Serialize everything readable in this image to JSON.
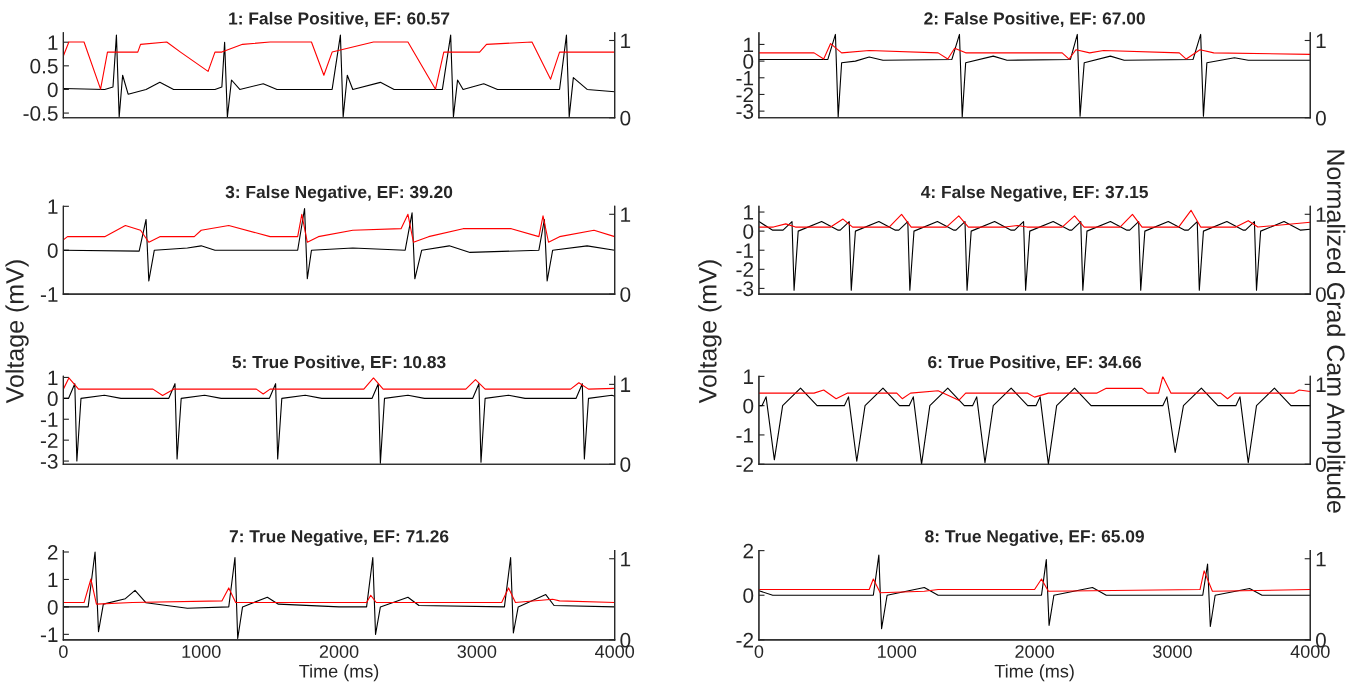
{
  "chart_data": [
    {
      "type": "line",
      "title": "1: False Positive, EF: 60.57",
      "xlim": [
        0,
        4000
      ],
      "xticks": [
        0,
        1000,
        2000,
        3000,
        4000
      ],
      "ylim": [
        -0.6,
        1.2
      ],
      "yticks": [
        -0.5,
        0,
        0.5,
        1
      ],
      "y2lim": [
        0,
        1.1
      ],
      "y2ticks": [
        0,
        1
      ],
      "tick_labels": "y",
      "series": [
        {
          "color": "#000000",
          "x": [
            0,
            300,
            360,
            385,
            405,
            430,
            470,
            600,
            700,
            800,
            1100,
            1150,
            1170,
            1190,
            1220,
            1280,
            1450,
            1550,
            1950,
            2010,
            2030,
            2060,
            2100,
            2300,
            2400,
            2750,
            2810,
            2830,
            2860,
            2900,
            3050,
            3150,
            3600,
            3650,
            3670,
            3700,
            3800,
            4000
          ],
          "values": [
            0.02,
            0.0,
            0.05,
            1.15,
            -0.58,
            0.3,
            -0.1,
            0.0,
            0.15,
            0.0,
            0.0,
            0.05,
            1.0,
            -0.58,
            0.2,
            0.0,
            0.12,
            0.0,
            0.0,
            1.15,
            -0.58,
            0.3,
            0.0,
            0.15,
            0.0,
            0.0,
            1.15,
            -0.58,
            0.2,
            0.0,
            0.12,
            0.0,
            0.0,
            1.15,
            -0.58,
            0.25,
            0.0,
            -0.05
          ]
        },
        {
          "color": "#ff0000",
          "axis": "y2",
          "x": [
            0,
            40,
            150,
            270,
            320,
            540,
            560,
            750,
            850,
            1050,
            1100,
            1150,
            1300,
            1500,
            1800,
            1890,
            1950,
            2250,
            2500,
            2700,
            2760,
            3020,
            3070,
            3400,
            3535,
            3600,
            4000
          ],
          "values": [
            0.8,
            0.98,
            0.98,
            0.37,
            0.85,
            0.85,
            0.95,
            0.98,
            0.85,
            0.6,
            0.85,
            0.85,
            0.95,
            0.98,
            0.98,
            0.55,
            0.85,
            0.98,
            0.98,
            0.37,
            0.85,
            0.85,
            0.95,
            0.98,
            0.5,
            0.85,
            0.85
          ]
        }
      ]
    },
    {
      "type": "line",
      "title": "2: False Positive, EF: 67.00",
      "xlim": [
        0,
        4000
      ],
      "xticks": [
        0,
        1000,
        2000,
        3000,
        4000
      ],
      "ylim": [
        -3.4,
        1.7
      ],
      "yticks": [
        -3,
        -2,
        -1,
        0,
        1
      ],
      "y2lim": [
        0,
        1.1
      ],
      "y2ticks": [
        0,
        1
      ],
      "tick_labels": "y",
      "series": [
        {
          "color": "#000000",
          "x": [
            0,
            500,
            555,
            575,
            600,
            700,
            800,
            900,
            1400,
            1455,
            1475,
            1500,
            1700,
            1800,
            2260,
            2310,
            2330,
            2360,
            2550,
            2650,
            3150,
            3205,
            3225,
            3250,
            3450,
            3550,
            4000
          ],
          "values": [
            0.1,
            0.1,
            1.6,
            -3.35,
            -0.1,
            0.0,
            0.25,
            0.05,
            0.1,
            1.6,
            -3.35,
            -0.1,
            0.3,
            0.05,
            0.1,
            1.6,
            -3.3,
            -0.1,
            0.3,
            0.05,
            0.1,
            1.6,
            -3.3,
            -0.1,
            0.2,
            0.05,
            0.05
          ]
        },
        {
          "color": "#ff0000",
          "axis": "y2",
          "x": [
            0,
            400,
            470,
            520,
            600,
            800,
            1300,
            1370,
            1420,
            1500,
            2200,
            2250,
            2300,
            2400,
            2500,
            3050,
            3100,
            3200,
            3300,
            4000
          ],
          "values": [
            0.84,
            0.84,
            0.76,
            0.96,
            0.84,
            0.87,
            0.84,
            0.76,
            0.9,
            0.84,
            0.84,
            0.76,
            0.88,
            0.84,
            0.87,
            0.84,
            0.76,
            0.88,
            0.84,
            0.82
          ]
        }
      ]
    },
    {
      "type": "line",
      "title": "3: False Negative, EF: 39.20",
      "xlim": [
        0,
        4000
      ],
      "xticks": [
        0,
        1000,
        2000,
        3000,
        4000
      ],
      "ylim": [
        -1,
        1
      ],
      "yticks": [
        -1,
        0,
        1
      ],
      "y2lim": [
        0,
        1.1
      ],
      "y2ticks": [
        0,
        1
      ],
      "tick_labels": "y",
      "ylabel": "Voltage (mV)",
      "series": [
        {
          "color": "#000000",
          "x": [
            0,
            550,
            600,
            620,
            660,
            900,
            1000,
            1100,
            1700,
            1750,
            1770,
            1800,
            2100,
            2480,
            2530,
            2550,
            2600,
            2800,
            2950,
            3450,
            3490,
            3510,
            3550,
            3800,
            4000
          ],
          "values": [
            0.0,
            -0.02,
            0.7,
            -0.7,
            0.0,
            0.05,
            0.1,
            0.0,
            0.0,
            0.95,
            -0.65,
            0.0,
            0.05,
            0.0,
            0.85,
            -0.65,
            0.0,
            0.1,
            -0.05,
            0.0,
            0.7,
            -0.7,
            0.0,
            0.1,
            0.0
          ]
        },
        {
          "color": "#ff0000",
          "axis": "y2",
          "x": [
            0,
            30,
            300,
            450,
            560,
            620,
            700,
            950,
            1000,
            1200,
            1500,
            1700,
            1730,
            1770,
            1850,
            2100,
            2450,
            2500,
            2540,
            2650,
            2900,
            3250,
            3450,
            3480,
            3520,
            3600,
            3850,
            4000
          ],
          "values": [
            0.68,
            0.72,
            0.72,
            0.86,
            0.8,
            0.65,
            0.72,
            0.72,
            0.8,
            0.86,
            0.72,
            0.72,
            1.0,
            0.65,
            0.72,
            0.8,
            0.82,
            1.0,
            0.65,
            0.72,
            0.82,
            0.82,
            0.72,
            0.98,
            0.65,
            0.72,
            0.8,
            0.72
          ]
        }
      ]
    },
    {
      "type": "line",
      "title": "4: False Negative, EF: 37.15",
      "xlim": [
        0,
        4000
      ],
      "xticks": [
        0,
        1000,
        2000,
        3000,
        4000
      ],
      "ylim": [
        -3.3,
        1.3
      ],
      "yticks": [
        -3,
        -2,
        -1,
        0,
        1
      ],
      "y2lim": [
        0,
        1.1
      ],
      "y2ticks": [
        0,
        1
      ],
      "tick_labels": "y",
      "ylabel": "Voltage (mV)",
      "y2label": "Normalized Grad Cam Amplitude",
      "series": [
        {
          "color": "#000000",
          "x": [
            0,
            100,
            175,
            240,
            255,
            285,
            455,
            575,
            590,
            655,
            670,
            700,
            870,
            990,
            1015,
            1080,
            1095,
            1125,
            1295,
            1415,
            1430,
            1495,
            1510,
            1540,
            1710,
            1830,
            1855,
            1920,
            1935,
            1965,
            2135,
            2255,
            2270,
            2335,
            2350,
            2380,
            2550,
            2670,
            2690,
            2755,
            2770,
            2800,
            2970,
            3090,
            3115,
            3180,
            3195,
            3225,
            3395,
            3515,
            3530,
            3595,
            3610,
            3640,
            3810,
            3930,
            4000
          ],
          "values": [
            0.5,
            0.05,
            0.05,
            0.5,
            -3.1,
            0.0,
            0.5,
            0.05,
            0.05,
            0.5,
            -3.1,
            0.0,
            0.5,
            0.05,
            0.05,
            0.5,
            -3.1,
            0.0,
            0.5,
            0.05,
            0.05,
            0.5,
            -3.1,
            0.0,
            0.5,
            0.05,
            0.05,
            0.5,
            -3.1,
            0.0,
            0.5,
            0.05,
            0.05,
            0.5,
            -3.1,
            0.0,
            0.5,
            0.05,
            0.05,
            0.5,
            -3.1,
            0.0,
            0.5,
            0.05,
            0.05,
            0.5,
            -3.1,
            0.0,
            0.5,
            0.05,
            0.05,
            0.5,
            -3.1,
            0.0,
            0.5,
            0.05,
            0.1
          ]
        },
        {
          "color": "#ff0000",
          "axis": "y2",
          "x": [
            0,
            105,
            195,
            265,
            520,
            610,
            680,
            945,
            1035,
            1105,
            1360,
            1450,
            1520,
            1785,
            1875,
            1945,
            2200,
            2290,
            2360,
            2620,
            2710,
            2780,
            3045,
            3135,
            3205,
            3460,
            3550,
            3620,
            4000
          ],
          "values": [
            0.84,
            0.84,
            0.88,
            0.84,
            0.84,
            0.94,
            0.84,
            0.84,
            1.0,
            0.84,
            0.84,
            0.98,
            0.84,
            0.84,
            0.86,
            0.84,
            0.84,
            0.98,
            0.84,
            0.84,
            1.0,
            0.84,
            0.84,
            1.05,
            0.84,
            0.84,
            0.92,
            0.84,
            0.9
          ]
        }
      ]
    },
    {
      "type": "line",
      "title": "5: True Positive, EF: 10.83",
      "xlim": [
        0,
        4000
      ],
      "xticks": [
        0,
        1000,
        2000,
        3000,
        4000
      ],
      "ylim": [
        -3.15,
        1.05
      ],
      "yticks": [
        -3,
        -2,
        -1,
        0,
        1
      ],
      "y2lim": [
        0,
        1.1
      ],
      "y2ticks": [
        0,
        1
      ],
      "tick_labels": "y",
      "series": [
        {
          "color": "#000000",
          "x": [
            0,
            38,
            83,
            98,
            128,
            298,
            418,
            765,
            810,
            825,
            855,
            1025,
            1145,
            1495,
            1540,
            1555,
            1585,
            1755,
            1875,
            2240,
            2285,
            2300,
            2330,
            2500,
            2620,
            2970,
            3015,
            3030,
            3060,
            3230,
            3350,
            3720,
            3765,
            3780,
            3810,
            3980,
            4000
          ],
          "values": [
            0.0,
            0.0,
            0.7,
            -3.0,
            0.0,
            0.15,
            0.0,
            0.0,
            0.7,
            -2.9,
            0.0,
            0.15,
            0.0,
            0.0,
            0.7,
            -2.9,
            0.0,
            0.15,
            0.0,
            0.0,
            0.7,
            -3.1,
            0.0,
            0.15,
            0.0,
            0.0,
            0.7,
            -3.05,
            0.0,
            0.15,
            0.0,
            0.0,
            0.7,
            -2.9,
            0.0,
            0.15,
            0.1
          ]
        },
        {
          "color": "#ff0000",
          "axis": "y2",
          "x": [
            0,
            40,
            110,
            650,
            720,
            800,
            1400,
            1450,
            1500,
            2180,
            2250,
            2320,
            2920,
            2990,
            3060,
            3680,
            3740,
            3810,
            4000
          ],
          "values": [
            0.94,
            1.08,
            0.94,
            0.94,
            0.86,
            0.94,
            0.94,
            0.88,
            0.94,
            0.94,
            1.08,
            0.94,
            0.94,
            1.06,
            0.94,
            0.94,
            1.02,
            0.94,
            0.95
          ]
        }
      ]
    },
    {
      "type": "line",
      "title": "6: True Positive, EF: 34.66",
      "xlim": [
        0,
        4000
      ],
      "xticks": [
        0,
        1000,
        2000,
        3000,
        4000
      ],
      "ylim": [
        -2,
        1
      ],
      "yticks": [
        -2,
        -1,
        0,
        1
      ],
      "y2lim": [
        0,
        1.1
      ],
      "y2ticks": [
        0,
        1
      ],
      "tick_labels": "y",
      "series": [
        {
          "color": "#000000",
          "x": [
            0,
            22,
            52,
            112,
            172,
            302,
            422,
            620,
            650,
            710,
            770,
            900,
            1020,
            1090,
            1120,
            1180,
            1240,
            1370,
            1490,
            1550,
            1580,
            1640,
            1700,
            1830,
            1950,
            2010,
            2040,
            2100,
            2160,
            2290,
            2410,
            2930,
            2960,
            3020,
            3080,
            3210,
            3330,
            3460,
            3490,
            3550,
            3610,
            3740,
            3860,
            4000
          ],
          "values": [
            0.0,
            0.0,
            0.3,
            -1.85,
            0.0,
            0.6,
            0.0,
            0.0,
            0.3,
            -1.9,
            0.0,
            0.6,
            0.0,
            0.0,
            0.3,
            -2.0,
            0.0,
            0.6,
            0.0,
            0.0,
            0.3,
            -1.95,
            0.0,
            0.6,
            0.0,
            0.0,
            0.3,
            -2.0,
            0.0,
            0.6,
            0.0,
            0.0,
            0.3,
            -1.6,
            0.0,
            0.6,
            0.0,
            0.0,
            0.3,
            -1.95,
            0.0,
            0.6,
            0.0,
            0.0
          ]
        },
        {
          "color": "#ff0000",
          "axis": "y2",
          "x": [
            0,
            400,
            470,
            560,
            640,
            1000,
            1040,
            1100,
            1300,
            1450,
            1500,
            1950,
            2000,
            2100,
            2450,
            2520,
            2780,
            2820,
            2900,
            2930,
            2990,
            3350,
            3400,
            3450,
            3880,
            3920,
            4000
          ],
          "values": [
            0.89,
            0.89,
            0.93,
            0.82,
            0.89,
            0.89,
            0.82,
            0.89,
            0.92,
            0.8,
            0.89,
            0.89,
            0.84,
            0.89,
            0.89,
            0.95,
            0.95,
            0.89,
            0.89,
            1.1,
            0.89,
            0.89,
            0.82,
            0.89,
            0.89,
            0.93,
            0.91
          ]
        }
      ]
    },
    {
      "type": "line",
      "title": "7: True Negative, EF: 71.26",
      "xlabel": "Time (ms)",
      "xlim": [
        0,
        4000
      ],
      "xticks": [
        0,
        1000,
        2000,
        3000,
        4000
      ],
      "ylim": [
        -1.2,
        2.05
      ],
      "yticks": [
        -1,
        0,
        1,
        2
      ],
      "y2lim": [
        0,
        1.1
      ],
      "y2ticks": [
        0,
        1
      ],
      "series": [
        {
          "color": "#000000",
          "x": [
            0,
            180,
            230,
            255,
            290,
            450,
            520,
            600,
            900,
            1200,
            1245,
            1265,
            1300,
            1480,
            1560,
            2000,
            2200,
            2245,
            2265,
            2300,
            2500,
            2580,
            3200,
            3245,
            3265,
            3300,
            3500,
            3560,
            4000
          ],
          "values": [
            0.0,
            0.0,
            2.0,
            -0.9,
            0.1,
            0.3,
            0.6,
            0.15,
            -0.05,
            0.0,
            1.8,
            -1.15,
            0.0,
            0.35,
            0.1,
            0.0,
            0.0,
            1.8,
            -1.0,
            0.0,
            0.35,
            0.05,
            0.0,
            1.8,
            -0.95,
            0.0,
            0.45,
            0.05,
            0.0
          ]
        },
        {
          "color": "#ff0000",
          "axis": "y2",
          "x": [
            0,
            150,
            200,
            240,
            500,
            1150,
            1200,
            1250,
            2200,
            2230,
            2270,
            3180,
            3230,
            3280,
            3550,
            3600,
            4000
          ],
          "values": [
            0.46,
            0.46,
            0.75,
            0.44,
            0.46,
            0.48,
            0.64,
            0.46,
            0.46,
            0.55,
            0.46,
            0.46,
            0.64,
            0.46,
            0.5,
            0.48,
            0.46
          ]
        }
      ]
    },
    {
      "type": "line",
      "title": "8: True Negative, EF: 65.09",
      "xlabel": "Time (ms)",
      "xlim": [
        0,
        4000
      ],
      "xticks": [
        0,
        1000,
        2000,
        3000,
        4000
      ],
      "ylim": [
        -2,
        2
      ],
      "yticks": [
        -2,
        0,
        2
      ],
      "y2lim": [
        0,
        1.1
      ],
      "y2ticks": [
        0,
        1
      ],
      "series": [
        {
          "color": "#000000",
          "x": [
            0,
            100,
            830,
            870,
            890,
            930,
            1200,
            1300,
            2050,
            2085,
            2105,
            2140,
            2420,
            2520,
            3220,
            3255,
            3275,
            3310,
            3560,
            3650,
            4000
          ],
          "values": [
            0.2,
            0.0,
            0.0,
            1.8,
            -1.5,
            0.0,
            0.35,
            0.0,
            0.0,
            1.6,
            -1.35,
            0.0,
            0.35,
            0.0,
            0.0,
            1.4,
            -1.4,
            0.0,
            0.3,
            0.0,
            0.0
          ]
        },
        {
          "color": "#ff0000",
          "axis": "y2",
          "x": [
            0,
            800,
            830,
            880,
            1200,
            1300,
            2000,
            2050,
            2100,
            3200,
            3230,
            3290,
            4000
          ],
          "values": [
            0.62,
            0.62,
            0.75,
            0.58,
            0.6,
            0.62,
            0.62,
            0.75,
            0.6,
            0.62,
            0.85,
            0.6,
            0.62
          ]
        }
      ]
    }
  ]
}
